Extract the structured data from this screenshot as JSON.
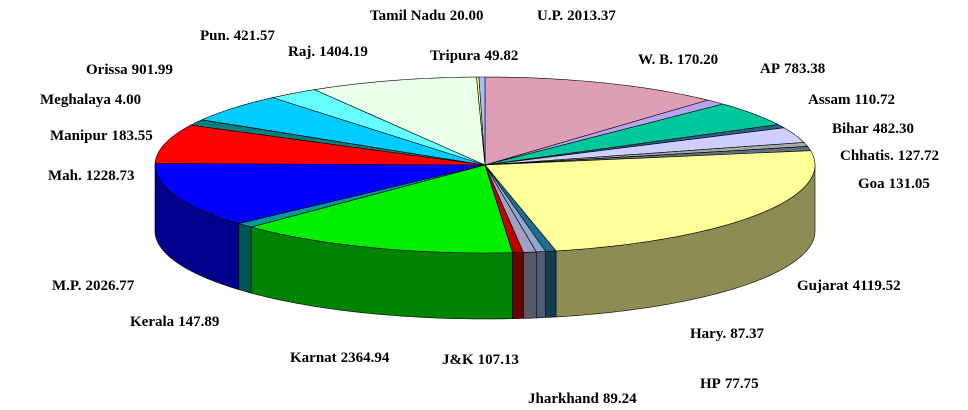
{
  "chart_data": {
    "type": "pie3d",
    "categories": [
      "U.P.",
      "W. B.",
      "AP",
      "Assam",
      "Bihar",
      "Chhatis.",
      "Goa",
      "Gujarat",
      "Hary.",
      "HP",
      "J&K",
      "Jharkhand",
      "Karnat",
      "Kerala",
      "M.P.",
      "Mah.",
      "Manipur",
      "Meghalaya",
      "Orissa",
      "Pun.",
      "Raj.",
      "Tamil Nadu",
      "Tripura"
    ],
    "values": [
      2013.37,
      170.2,
      783.38,
      110.72,
      482.3,
      127.72,
      131.05,
      4119.52,
      87.37,
      77.75,
      107.13,
      89.24,
      2364.94,
      147.89,
      2026.77,
      1228.73,
      183.55,
      4.0,
      901.99,
      421.57,
      1404.19,
      20.0,
      49.82
    ],
    "value_labels": [
      "2013.37",
      "170.20",
      "783.38",
      "110.72",
      "482.30",
      "127.72",
      "131.05",
      "4119.52",
      "87.37",
      "77.75",
      "107.13",
      "89.24",
      "2364.94",
      "147.89",
      "2026.77",
      "1228.73",
      "183.55",
      "4.00",
      "901.99",
      "421.57",
      "1404.19",
      "20.00",
      "49.82"
    ],
    "colors": [
      "#dd9eb6",
      "#b9a3ef",
      "#00c89c",
      "#2a5e8c",
      "#cfcfff",
      "#a8a8a8",
      "#5f7080",
      "#ffff99",
      "#1f6f8f",
      "#8fa8d0",
      "#a0a0c0",
      "#c00000",
      "#00ee00",
      "#009a9a",
      "#0000ff",
      "#ff0000",
      "#008080",
      "#005a5a",
      "#00ccff",
      "#66ffff",
      "#eaffea",
      "#ffff66",
      "#a0c0ff"
    ]
  }
}
